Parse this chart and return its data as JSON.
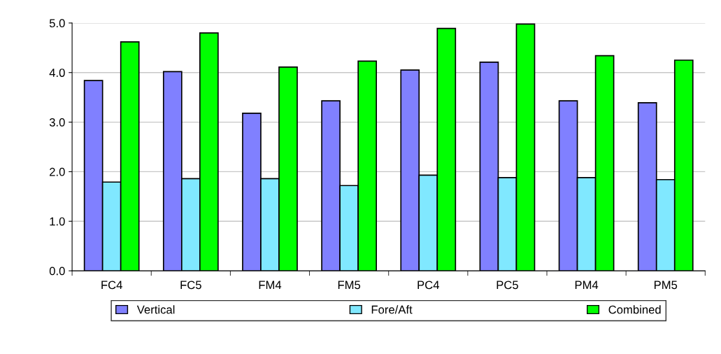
{
  "chart_data": {
    "type": "bar",
    "categories": [
      "FC4",
      "FC5",
      "FM4",
      "FM5",
      "PC4",
      "PC5",
      "PM4",
      "PM5"
    ],
    "series": [
      {
        "name": "Vertical",
        "color": "#8080ff",
        "values": [
          3.84,
          4.02,
          3.18,
          3.43,
          4.05,
          4.21,
          3.43,
          3.39
        ]
      },
      {
        "name": "Fore/Aft",
        "color": "#80e8ff",
        "values": [
          1.79,
          1.86,
          1.86,
          1.72,
          1.93,
          1.88,
          1.88,
          1.84
        ]
      },
      {
        "name": "Combined",
        "color": "#00ff00",
        "values": [
          4.62,
          4.8,
          4.11,
          4.23,
          4.89,
          4.98,
          4.34,
          4.25
        ]
      }
    ],
    "ylim": [
      0,
      5
    ],
    "yticks": [
      {
        "value": 0,
        "label": "0.0"
      },
      {
        "value": 1,
        "label": "1.0"
      },
      {
        "value": 2,
        "label": "2.0"
      },
      {
        "value": 3,
        "label": "3.0"
      },
      {
        "value": 4,
        "label": "4.0"
      },
      {
        "value": 5,
        "label": "5.0"
      }
    ],
    "grid": "y",
    "legend": "bottom"
  }
}
